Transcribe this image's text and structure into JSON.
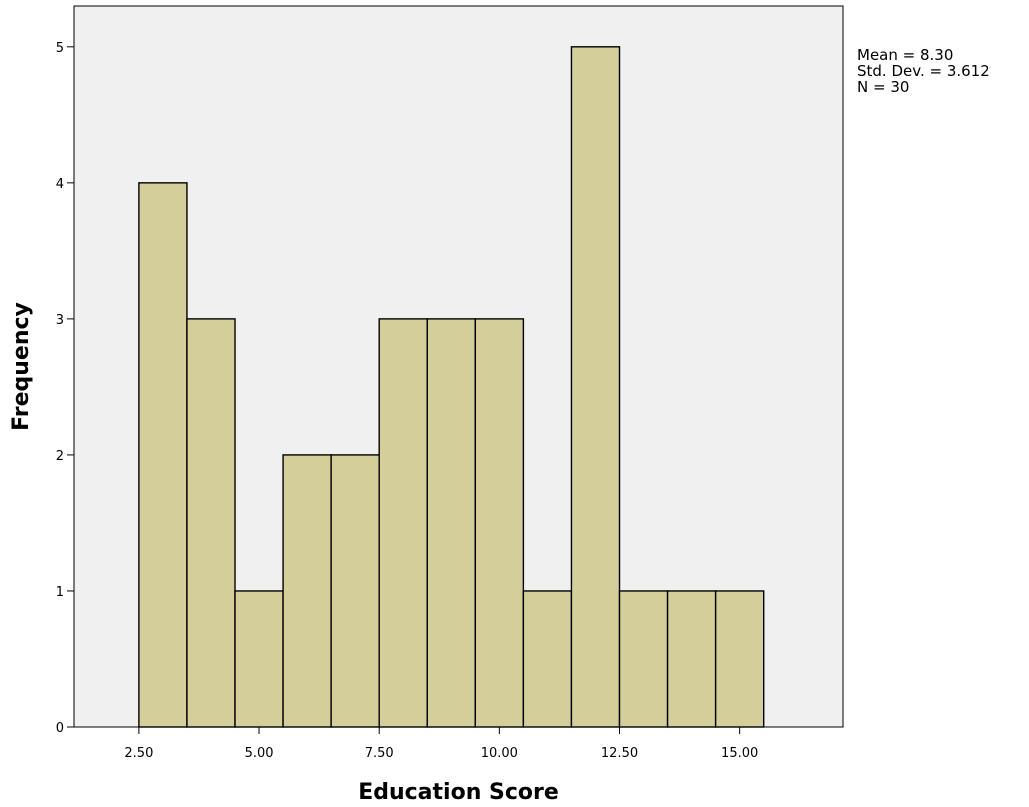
{
  "chart_data": {
    "type": "bar",
    "subtype": "histogram",
    "bins": [
      {
        "x0": 2.5,
        "x1": 3.5,
        "count": 4
      },
      {
        "x0": 3.5,
        "x1": 4.5,
        "count": 3
      },
      {
        "x0": 4.5,
        "x1": 5.5,
        "count": 1
      },
      {
        "x0": 5.5,
        "x1": 6.5,
        "count": 2
      },
      {
        "x0": 6.5,
        "x1": 7.5,
        "count": 2
      },
      {
        "x0": 7.5,
        "x1": 8.5,
        "count": 3
      },
      {
        "x0": 8.5,
        "x1": 9.5,
        "count": 3
      },
      {
        "x0": 9.5,
        "x1": 10.5,
        "count": 3
      },
      {
        "x0": 10.5,
        "x1": 11.5,
        "count": 1
      },
      {
        "x0": 11.5,
        "x1": 12.5,
        "count": 5
      },
      {
        "x0": 12.5,
        "x1": 13.5,
        "count": 1
      },
      {
        "x0": 13.5,
        "x1": 14.5,
        "count": 1
      },
      {
        "x0": 14.5,
        "x1": 15.5,
        "count": 1
      }
    ],
    "xlabel": "Education Score",
    "ylabel": "Frequency",
    "xlim": [
      1.15,
      17.15
    ],
    "ylim": [
      0,
      5.3
    ],
    "xticks": [
      2.5,
      5,
      7.5,
      10,
      12.5,
      15
    ],
    "xtick_labels": [
      "2.50",
      "5.00",
      "7.50",
      "10.00",
      "12.50",
      "15.00"
    ],
    "yticks": [
      0,
      1,
      2,
      3,
      4,
      5
    ],
    "ytick_labels": [
      "0",
      "1",
      "2",
      "3",
      "4",
      "5"
    ],
    "grid": false,
    "legend": "none",
    "annotations": [
      "Mean = 8.30",
      "Std. Dev. = 3.612",
      "N = 30"
    ],
    "colors": {
      "bar_fill": "#d4cf9a",
      "bar_stroke": "#000000",
      "plot_background": "#f0f0f0",
      "axis": "#000000"
    }
  }
}
